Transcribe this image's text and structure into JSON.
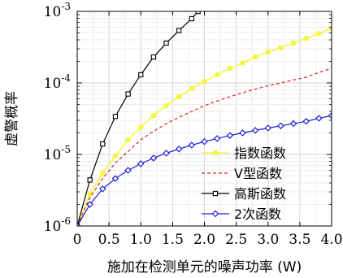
{
  "chart_data": {
    "type": "line",
    "xlabel": "施加在检测单元的噪声功率 (W)",
    "ylabel": "虚警概率",
    "xlim": [
      0,
      4.0
    ],
    "ylim": [
      1e-06,
      0.001
    ],
    "yscale": "log",
    "grid": true,
    "legend_position": "bottom-right",
    "x_ticks": [
      "0",
      "0.5",
      "1.0",
      "1.5",
      "2.0",
      "2.5",
      "3.0",
      "3.5",
      "4.0"
    ],
    "y_ticks": [
      {
        "base": "10",
        "exp": "-6"
      },
      {
        "base": "10",
        "exp": "-5"
      },
      {
        "base": "10",
        "exp": "-4"
      },
      {
        "base": "10",
        "exp": "-3"
      }
    ],
    "series": [
      {
        "name": "指数函数",
        "color": "#f5f542",
        "marker": "circle",
        "dash": "none",
        "x": [
          0,
          0.2,
          0.4,
          0.6,
          0.8,
          1.0,
          1.2,
          1.4,
          1.6,
          1.8,
          2.0,
          2.2,
          2.4,
          2.6,
          2.8,
          3.0,
          3.2,
          3.4,
          3.6,
          3.8,
          4.0
        ],
        "y": [
          1e-06,
          2.8e-06,
          5.5e-06,
          9.5e-06,
          1.6e-05,
          2.4e-05,
          3.5e-05,
          4.8e-05,
          6.4e-05,
          8.3e-05,
          0.000105,
          0.00013,
          0.00016,
          0.00019,
          0.00023,
          0.00027,
          0.00031,
          0.00036,
          0.00042,
          0.00049,
          0.00058
        ]
      },
      {
        "name": "V型函数",
        "color": "#d62728",
        "marker": "none",
        "dash": "4,3",
        "x": [
          0,
          0.2,
          0.4,
          0.6,
          0.8,
          1.0,
          1.2,
          1.4,
          1.6,
          1.8,
          2.0,
          2.2,
          2.4,
          2.6,
          2.8,
          3.0,
          3.2,
          3.4,
          3.6,
          3.8,
          4.0
        ],
        "y": [
          1e-06,
          2.5e-06,
          4.6e-06,
          7.6e-06,
          1.1e-05,
          1.6e-05,
          2.1e-05,
          2.7e-05,
          3.3e-05,
          4e-05,
          4.8e-05,
          5.6e-05,
          6.4e-05,
          7.3e-05,
          8.2e-05,
          9.1e-05,
          0.0001,
          0.00011,
          0.00012,
          0.00014,
          0.00016
        ]
      },
      {
        "name": "高斯函数",
        "color": "#000000",
        "marker": "square",
        "dash": "none",
        "x": [
          0,
          0.2,
          0.4,
          0.6,
          0.8,
          1.0,
          1.2,
          1.4,
          1.6,
          1.8,
          1.9
        ],
        "y": [
          1e-06,
          4.4e-06,
          1.4e-05,
          3.4e-05,
          7e-05,
          0.00013,
          0.00023,
          0.00036,
          0.00054,
          0.00079,
          0.001
        ]
      },
      {
        "name": "2次函数",
        "color": "#1f1fd6",
        "marker": "diamond",
        "dash": "none",
        "x": [
          0,
          0.2,
          0.4,
          0.6,
          0.8,
          1.0,
          1.2,
          1.4,
          1.6,
          1.8,
          2.0,
          2.2,
          2.4,
          2.6,
          2.8,
          3.0,
          3.2,
          3.4,
          3.6,
          3.8,
          4.0
        ],
        "y": [
          1e-06,
          2e-06,
          3.3e-06,
          4.6e-06,
          6e-06,
          7.4e-06,
          8.9e-06,
          1.04e-05,
          1.19e-05,
          1.35e-05,
          1.51e-05,
          1.67e-05,
          1.84e-05,
          2e-05,
          2.17e-05,
          2.34e-05,
          2.51e-05,
          2.7e-05,
          2.9e-05,
          3.2e-05,
          3.5e-05
        ]
      }
    ]
  }
}
